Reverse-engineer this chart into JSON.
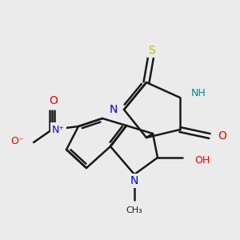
{
  "background_color": "#ebebeb",
  "bond_color": "#1a1a1a",
  "N_color": "#0000ee",
  "O_color": "#ee0000",
  "S_color": "#bbbb00",
  "H_color": "#008888",
  "figsize": [
    3.0,
    3.0
  ],
  "dpi": 100,
  "xlim": [
    0,
    300
  ],
  "ylim": [
    0,
    300
  ]
}
